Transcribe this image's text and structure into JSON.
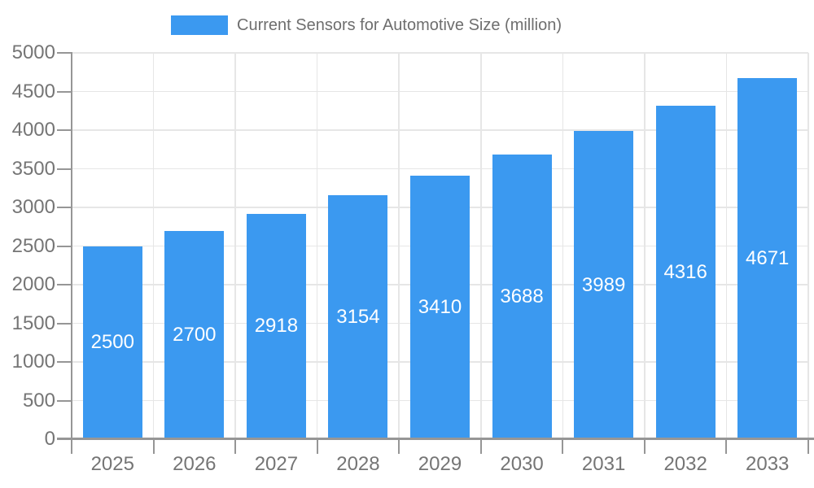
{
  "legend": {
    "label": "Current Sensors for Automotive Size (million)"
  },
  "chart_data": {
    "type": "bar",
    "title": "Current Sensors for Automotive Size (million)",
    "categories": [
      "2025",
      "2026",
      "2027",
      "2028",
      "2029",
      "2030",
      "2031",
      "2032",
      "2033"
    ],
    "values": [
      2500,
      2700,
      2918,
      3154,
      3410,
      3688,
      3989,
      4316,
      4671
    ],
    "xlabel": "",
    "ylabel": "",
    "ylim": [
      0,
      5000
    ],
    "ytick_step": 500,
    "grid": true,
    "legend_position": "top-center",
    "value_label_position": "inside-center",
    "colors": {
      "bar": "#3b99f0",
      "value_label": "#ffffff",
      "axis_text": "#757575",
      "legend_text": "#6e6e6e",
      "gridline": "#e6e6e6",
      "axis_line": "#969696",
      "background": "#ffffff"
    }
  }
}
